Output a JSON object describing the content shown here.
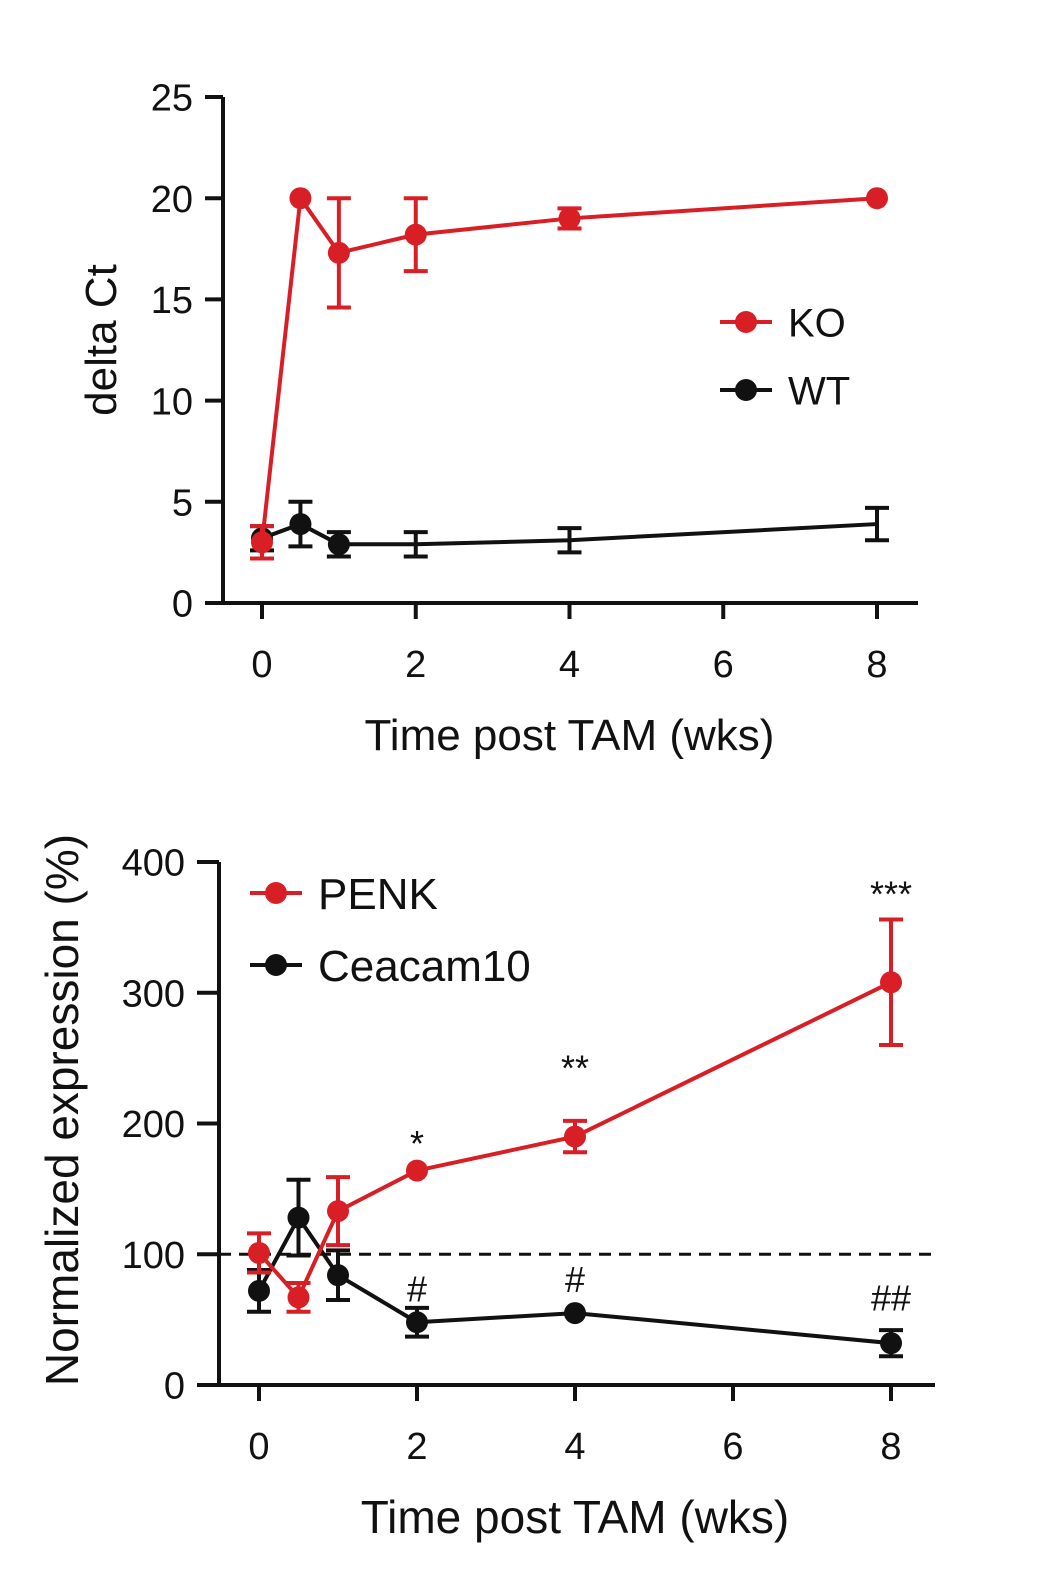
{
  "colors": {
    "red": "#d91f26",
    "black": "#111111",
    "axis": "#111111"
  },
  "chart_data": [
    {
      "type": "line",
      "ylabel": "delta Ct",
      "xlabel": "Time post TAM (wks)",
      "xlim": [
        0,
        8
      ],
      "ylim": [
        0,
        25
      ],
      "xticks": [
        0,
        2,
        4,
        6,
        8
      ],
      "yticks": [
        0,
        5,
        10,
        15,
        20,
        25
      ],
      "legend_position": "right-center",
      "series": [
        {
          "name": "KO",
          "color": "#d91f26",
          "x": [
            0,
            0.5,
            1,
            2,
            4,
            8
          ],
          "y": [
            3,
            20,
            17.3,
            18.2,
            19,
            20
          ],
          "err": [
            0.8,
            0,
            2.7,
            1.8,
            0.5,
            0
          ]
        },
        {
          "name": "WT",
          "color": "#111111",
          "x": [
            0,
            0.5,
            1,
            2,
            4,
            8
          ],
          "y": [
            3.2,
            3.9,
            2.9,
            2.9,
            3.1,
            3.9
          ],
          "err": [
            0.6,
            1.1,
            0.6,
            0.6,
            0.6,
            0.8
          ]
        }
      ]
    },
    {
      "type": "line",
      "ylabel": "Normalized expression (%)",
      "xlabel": "Time post TAM (wks)",
      "xlim": [
        0,
        8
      ],
      "ylim": [
        0,
        400
      ],
      "xticks": [
        0,
        2,
        4,
        6,
        8
      ],
      "yticks": [
        0,
        100,
        200,
        300,
        400
      ],
      "legend_position": "top-left",
      "reference_line": 100,
      "series": [
        {
          "name": "PENK",
          "color": "#d91f26",
          "x": [
            0,
            0.5,
            1,
            2,
            4,
            8
          ],
          "y": [
            101,
            67,
            133,
            164,
            190,
            308
          ],
          "err": [
            15,
            11,
            26,
            0,
            12,
            48
          ]
        },
        {
          "name": "Ceacam10",
          "color": "#111111",
          "x": [
            0,
            0.5,
            1,
            2,
            4,
            8
          ],
          "y": [
            72,
            128,
            84,
            48,
            55,
            32
          ],
          "err": [
            16,
            29,
            19,
            11,
            0,
            10
          ]
        }
      ],
      "annotations": [
        {
          "text": "*",
          "x": 2,
          "y": 175,
          "color": "#111111"
        },
        {
          "text": "**",
          "x": 4,
          "y": 233,
          "color": "#111111"
        },
        {
          "text": "***",
          "x": 8,
          "y": 366,
          "color": "#111111"
        },
        {
          "text": "#",
          "x": 2,
          "y": 64,
          "color": "#111111"
        },
        {
          "text": "#",
          "x": 4,
          "y": 71,
          "color": "#111111"
        },
        {
          "text": "##",
          "x": 8,
          "y": 57,
          "color": "#111111"
        }
      ]
    }
  ]
}
